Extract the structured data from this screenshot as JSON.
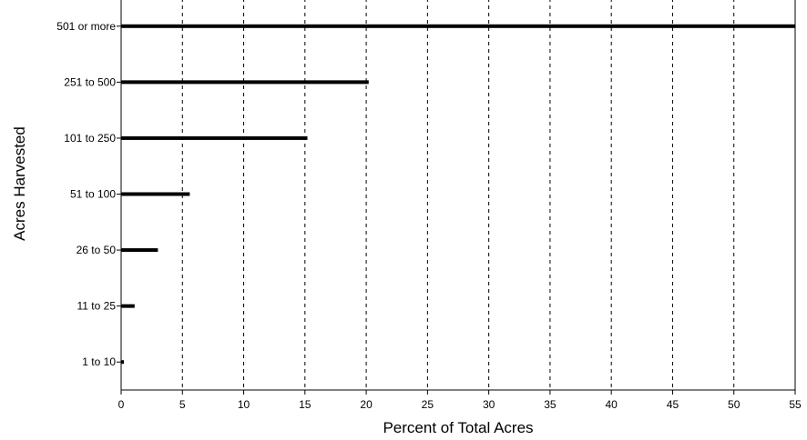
{
  "chart_data": {
    "type": "bar",
    "orientation": "horizontal",
    "title": "",
    "xlabel": "Percent of Total Acres",
    "ylabel": "Acres Harvested",
    "categories": [
      "501 or more",
      "251 to 500",
      "101 to 250",
      "51 to 100",
      "26 to 50",
      "11 to 25",
      "1 to 10"
    ],
    "values": [
      55,
      20.2,
      15.2,
      5.6,
      3.0,
      1.1,
      0.2
    ],
    "xlim": [
      0,
      55
    ],
    "xticks": [
      0,
      5,
      10,
      15,
      20,
      25,
      30,
      35,
      40,
      45,
      50,
      55
    ],
    "grid": "vertical dashed",
    "legend": "none",
    "bar_color": "#000000"
  }
}
